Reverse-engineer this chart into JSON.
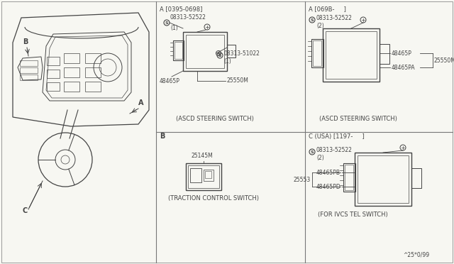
{
  "bg_color": "#f7f7f2",
  "line_color": "#777777",
  "dark_line": "#444444",
  "corner_label": "^25*0/99",
  "sections": {
    "A1_label": "A [0395-0698]",
    "A1_caption": "(ASCD STEERING SWITCH)",
    "A2_label": "A [069B-     ]",
    "A2_caption": "(ASCD STEERING SWITCH)",
    "B_label": "B",
    "B_caption": "(TRACTION CONTROL SWITCH)",
    "C_label": "C (USA) [1197-     ]",
    "C_caption": "(FOR IVCS TEL SWITCH)"
  }
}
